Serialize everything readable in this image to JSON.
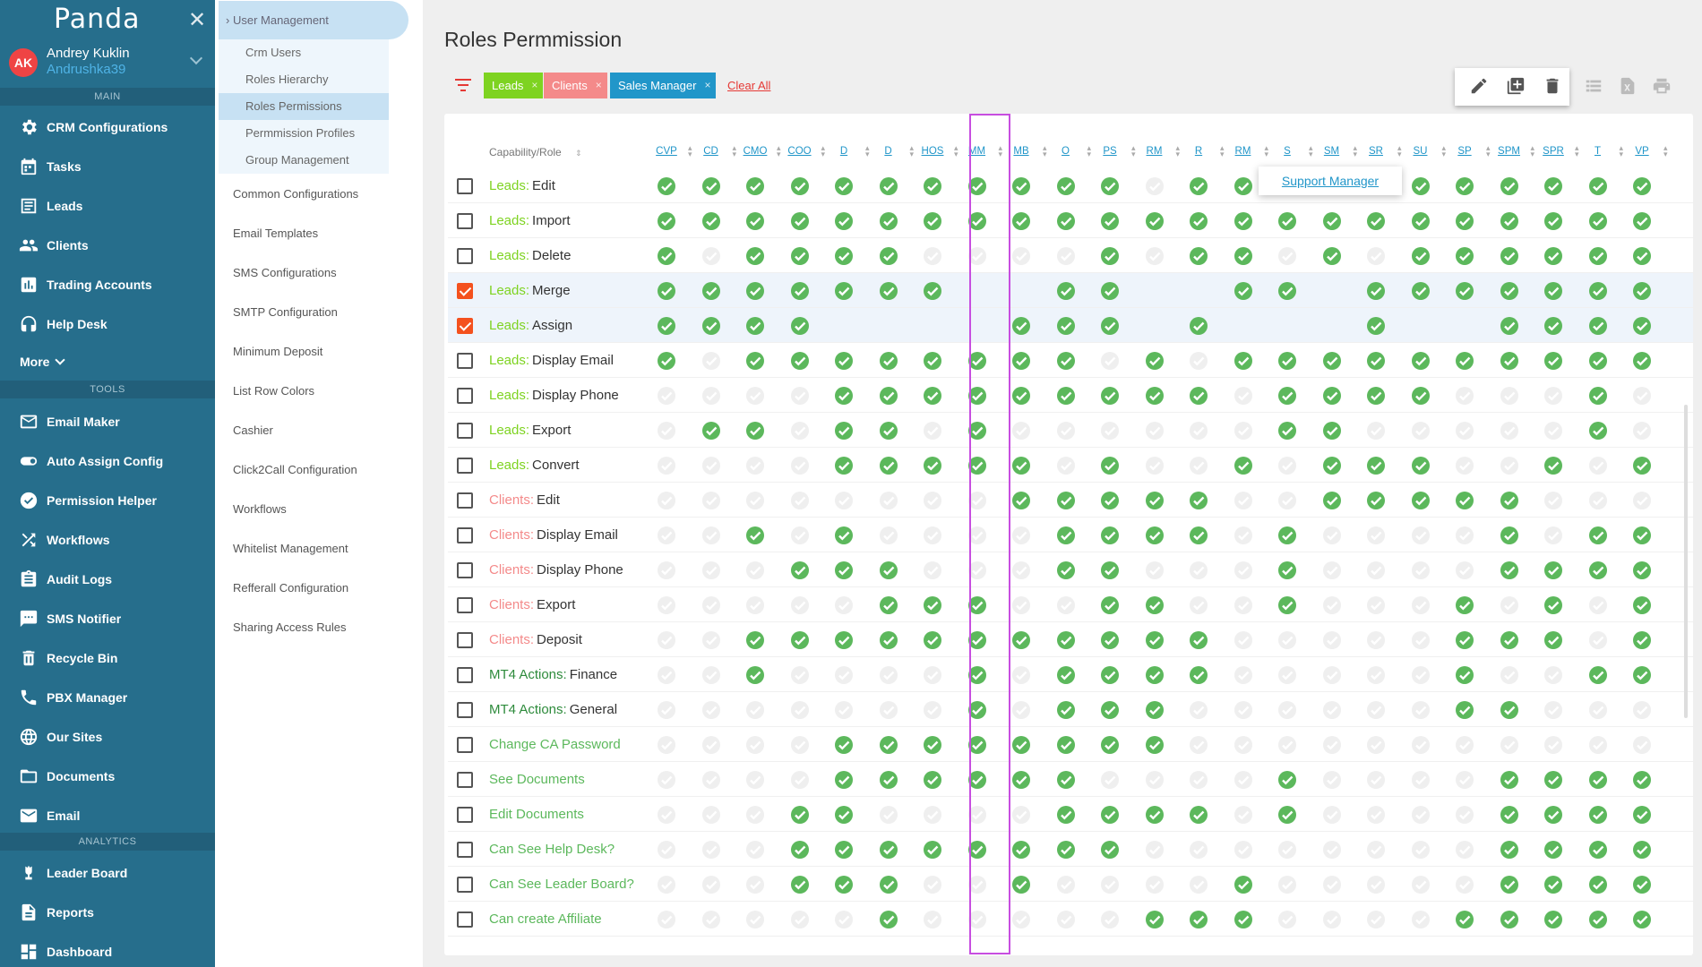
{
  "app": {
    "logo": "Panda",
    "close_icon": "close-icon"
  },
  "user": {
    "initials": "AK",
    "name": "Andrey Kuklin",
    "login": "Andrushka39"
  },
  "sections": {
    "main": "MAIN",
    "tools": "TOOLS",
    "analytics": "ANALYTICS"
  },
  "nav_main": [
    {
      "label": "CRM Configurations",
      "icon": "gear-icon"
    },
    {
      "label": "Tasks",
      "icon": "calendar-icon"
    },
    {
      "label": "Leads",
      "icon": "list-icon"
    },
    {
      "label": "Clients",
      "icon": "people-icon"
    },
    {
      "label": "Trading Accounts",
      "icon": "bar-chart-icon"
    },
    {
      "label": "Help Desk",
      "icon": "headset-icon"
    }
  ],
  "more_label": "More",
  "nav_tools": [
    {
      "label": "Email Maker",
      "icon": "mail-icon"
    },
    {
      "label": "Auto Assign Config",
      "icon": "toggle-icon"
    },
    {
      "label": "Permission Helper",
      "icon": "user-check-icon"
    },
    {
      "label": "Workflows",
      "icon": "shuffle-icon"
    },
    {
      "label": "Audit Logs",
      "icon": "clipboard-icon"
    },
    {
      "label": "SMS Notifier",
      "icon": "sms-icon"
    },
    {
      "label": "Recycle Bin",
      "icon": "trash-icon"
    },
    {
      "label": "PBX Manager",
      "icon": "phone-icon"
    },
    {
      "label": "Our Sites",
      "icon": "globe-icon"
    },
    {
      "label": "Documents",
      "icon": "folder-icon"
    },
    {
      "label": "Email",
      "icon": "envelope-icon"
    }
  ],
  "nav_analytics": [
    {
      "label": "Leader Board",
      "icon": "trophy-icon"
    },
    {
      "label": "Reports",
      "icon": "report-icon"
    },
    {
      "label": "Dashboard",
      "icon": "dashboard-icon"
    }
  ],
  "submenu": {
    "head": "User Management",
    "children": [
      "Crm Users",
      "Roles Hierarchy",
      "Roles Permissions",
      "Permmission Profiles",
      "Group Management"
    ],
    "items": [
      "Common Configurations",
      "Email Templates",
      "SMS Configurations",
      "SMTP Configuration",
      "Minimum Deposit",
      "List Row Colors",
      "Cashier",
      "Click2Call Configuration",
      "Workflows",
      "Whitelist Management",
      "Refferall Configuration",
      "Sharing Access Rules"
    ]
  },
  "page": {
    "title": "Roles Permmission",
    "clear_all": "Clear All"
  },
  "filters": [
    {
      "label": "Leads",
      "color": "#7ed321"
    },
    {
      "label": "Clients",
      "color": "#f48a8a"
    },
    {
      "label": "Sales Manager",
      "color": "#2196c9"
    }
  ],
  "table": {
    "capability_header": "Capability/Role",
    "columns": [
      "CVP",
      "CD",
      "CMO",
      "COO",
      "D",
      "D",
      "HOS",
      "MM",
      "MB",
      "O",
      "PS",
      "RM",
      "R",
      "RM",
      "S",
      "SM",
      "SR",
      "SU",
      "SP",
      "SPM",
      "SPR",
      "T",
      "VP"
    ],
    "tooltip": "Support Manager",
    "rows": [
      {
        "cat": "Leads:",
        "label": "Edit",
        "color": "#7ed321",
        "checked": false,
        "perms": "11111111111011110111111"
      },
      {
        "cat": "Leads:",
        "label": "Import",
        "color": "#7ed321",
        "checked": false,
        "perms": "11111111111111111111111"
      },
      {
        "cat": "Leads:",
        "label": "Delete",
        "color": "#7ed321",
        "checked": false,
        "perms": "10111100001011010111111"
      },
      {
        "cat": "Leads:",
        "label": "Merge",
        "color": "#7ed321",
        "checked": true,
        "perms": "1111111--11--11-1111111"
      },
      {
        "cat": "Leads:",
        "label": "Assign",
        "color": "#7ed321",
        "checked": true,
        "perms": "1111----111-1---1--1111"
      },
      {
        "cat": "Leads:",
        "label": "Display Email",
        "color": "#7ed321",
        "checked": false,
        "perms": "10111111110101111111111"
      },
      {
        "cat": "Leads:",
        "label": "Display Phone",
        "color": "#7ed321",
        "checked": false,
        "perms": "00001111111110111100010"
      },
      {
        "cat": "Leads:",
        "label": "Export",
        "color": "#7ed321",
        "checked": false,
        "perms": "01101101000000110000010"
      },
      {
        "cat": "Leads:",
        "label": "Convert",
        "color": "#7ed321",
        "checked": false,
        "perms": "00001111101001011100101"
      },
      {
        "cat": "Clients:",
        "label": "Edit",
        "color": "#f48a8a",
        "checked": false,
        "perms": "00000000111110011111000"
      },
      {
        "cat": "Clients:",
        "label": "Display Email",
        "color": "#f48a8a",
        "checked": false,
        "perms": "00101000011110100001011"
      },
      {
        "cat": "Clients:",
        "label": "Display Phone",
        "color": "#f48a8a",
        "checked": false,
        "perms": "00011100011000100001111"
      },
      {
        "cat": "Clients:",
        "label": "Export",
        "color": "#f48a8a",
        "checked": false,
        "perms": "00000111001100100010101"
      },
      {
        "cat": "Clients:",
        "label": "Deposit",
        "color": "#f48a8a",
        "checked": false,
        "perms": "00111111111110000011101"
      },
      {
        "cat": "MT4 Actions:",
        "label": "Finance",
        "color": "#2e8b3c",
        "checked": false,
        "perms": "00100001011110000010011"
      },
      {
        "cat": "MT4 Actions:",
        "label": "General",
        "color": "#2e8b3c",
        "checked": false,
        "perms": "00000001011100000011000"
      },
      {
        "cat": "",
        "label": "Change CA Password",
        "color": "#5cb85c",
        "checked": false,
        "perms": "00001111111100000000000"
      },
      {
        "cat": "",
        "label": "See Documents",
        "color": "#5cb85c",
        "checked": false,
        "perms": "00001111110000100001111"
      },
      {
        "cat": "",
        "label": "Edit Documents",
        "color": "#5cb85c",
        "checked": false,
        "perms": "00011000011110100001111"
      },
      {
        "cat": "",
        "label": "Can See Help Desk?",
        "color": "#5cb85c",
        "checked": false,
        "perms": "00011111111000000001111"
      },
      {
        "cat": "",
        "label": "Can See Leader Board?",
        "color": "#5cb85c",
        "checked": false,
        "perms": "00011100100001000001111"
      },
      {
        "cat": "",
        "label": "Can create Affiliate",
        "color": "#5cb85c",
        "checked": false,
        "perms": "00000100000111000011111"
      }
    ]
  }
}
